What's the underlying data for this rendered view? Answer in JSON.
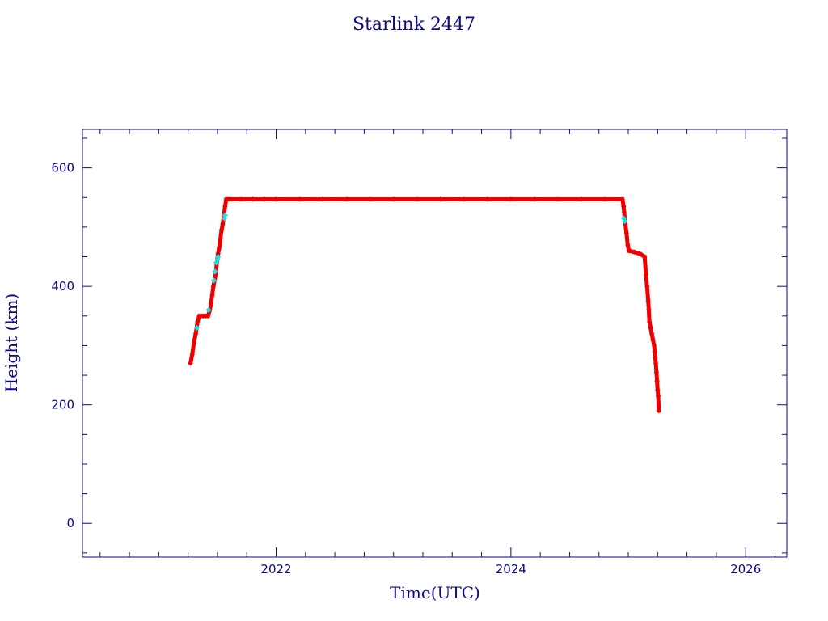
{
  "chart_data": {
    "type": "scatter",
    "title": "Starlink 2447",
    "xlabel": "Time(UTC)",
    "ylabel": "Height (km)",
    "xlim": [
      2020.35,
      2026.35
    ],
    "ylim": [
      -57,
      665
    ],
    "x_ticks": [
      2022,
      2024,
      2026
    ],
    "x_tick_labels": [
      "2022",
      "2024",
      "2026"
    ],
    "y_ticks": [
      0,
      200,
      400,
      600
    ],
    "y_tick_labels": [
      "0",
      "200",
      "400",
      "600"
    ],
    "grid": false,
    "colors": {
      "frame": "#0a0a8a",
      "primary_marker": "#ee0000",
      "secondary_marker": "#22dddd",
      "decay_line": "#0a0a8a"
    },
    "series": [
      {
        "color": "#ee0000",
        "marker": "asterisk",
        "x": [
          2021.27,
          2021.285,
          2021.3,
          2021.315,
          2021.33,
          2021.345,
          2021.36,
          2021.38,
          2021.4,
          2021.42,
          2021.435,
          2021.445,
          2021.455,
          2021.465,
          2021.475,
          2021.485,
          2021.495,
          2021.505,
          2021.515,
          2021.525,
          2021.535,
          2021.545,
          2021.555,
          2021.565,
          2021.575,
          2021.6,
          2021.7,
          2021.8,
          2021.9,
          2022.0,
          2022.2,
          2022.4,
          2022.6,
          2022.8,
          2023.0,
          2023.2,
          2023.4,
          2023.6,
          2023.8,
          2024.0,
          2024.2,
          2024.4,
          2024.6,
          2024.8,
          2024.95,
          2024.96,
          2024.965,
          2024.975,
          2024.985,
          2024.995,
          2025.005,
          2025.05,
          2025.1,
          2025.14,
          2025.15,
          2025.16,
          2025.17,
          2025.175,
          2025.18,
          2025.19,
          2025.2,
          2025.21,
          2025.22,
          2025.225,
          2025.23,
          2025.235,
          2025.24,
          2025.245,
          2025.25,
          2025.255,
          2025.26
        ],
        "y": [
          270,
          285,
          305,
          320,
          340,
          350,
          350,
          350,
          350,
          350,
          360,
          370,
          385,
          400,
          410,
          420,
          440,
          455,
          465,
          480,
          495,
          505,
          520,
          535,
          547,
          547,
          547,
          547,
          547,
          547,
          547,
          547,
          547,
          547,
          547,
          547,
          547,
          547,
          547,
          547,
          547,
          547,
          547,
          547,
          547,
          535,
          525,
          505,
          490,
          470,
          460,
          458,
          455,
          450,
          420,
          400,
          375,
          360,
          340,
          330,
          320,
          310,
          300,
          290,
          280,
          270,
          255,
          240,
          225,
          215,
          190
        ]
      },
      {
        "color": "#22dddd",
        "marker": "diamond",
        "x": [
          2021.325,
          2021.425,
          2021.47,
          2021.48,
          2021.49,
          2021.5,
          2021.505,
          2021.56,
          2021.565,
          2024.962,
          2024.97
        ],
        "y": [
          330,
          360,
          410,
          425,
          440,
          445,
          450,
          515,
          520,
          515,
          510
        ]
      }
    ]
  }
}
